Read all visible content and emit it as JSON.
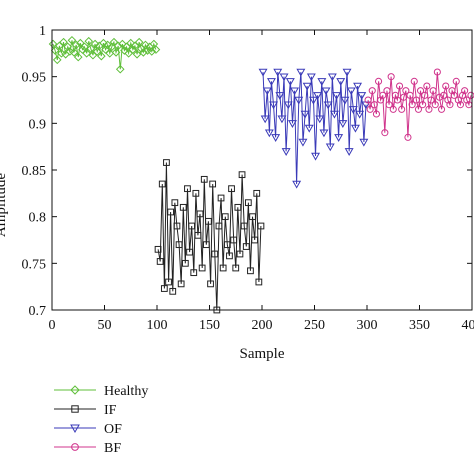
{
  "chart_data": {
    "type": "scatter",
    "xlabel": "Sample",
    "ylabel": "Amplitude",
    "xlim": [
      0,
      400
    ],
    "ylim": [
      0.7,
      1.0
    ],
    "xticks": [
      0,
      50,
      100,
      150,
      200,
      250,
      300,
      350,
      400
    ],
    "yticks": [
      0.7,
      0.75,
      0.8,
      0.85,
      0.9,
      0.95,
      1
    ],
    "grid": false,
    "legend_position": "below-left",
    "series": [
      {
        "name": "Healthy",
        "color": "#5fbf3a",
        "marker": "diamond",
        "x": [
          1,
          3,
          5,
          7,
          9,
          11,
          13,
          15,
          17,
          19,
          21,
          23,
          25,
          27,
          29,
          31,
          33,
          35,
          37,
          39,
          41,
          43,
          45,
          47,
          49,
          51,
          53,
          55,
          57,
          59,
          61,
          63,
          65,
          67,
          69,
          71,
          73,
          75,
          77,
          79,
          81,
          83,
          85,
          87,
          89,
          91,
          93,
          95,
          97,
          99
        ],
        "values": [
          0.985,
          0.978,
          0.968,
          0.983,
          0.975,
          0.987,
          0.974,
          0.982,
          0.977,
          0.989,
          0.976,
          0.984,
          0.971,
          0.986,
          0.979,
          0.982,
          0.975,
          0.988,
          0.98,
          0.973,
          0.985,
          0.977,
          0.983,
          0.972,
          0.986,
          0.979,
          0.984,
          0.975,
          0.982,
          0.987,
          0.976,
          0.983,
          0.958,
          0.985,
          0.978,
          0.982,
          0.975,
          0.986,
          0.979,
          0.983,
          0.974,
          0.987,
          0.98,
          0.976,
          0.984,
          0.978,
          0.982,
          0.977,
          0.985,
          0.979
        ]
      },
      {
        "name": "IF",
        "color": "#222222",
        "marker": "square",
        "x": [
          101,
          103,
          105,
          107,
          109,
          111,
          113,
          115,
          117,
          119,
          121,
          123,
          125,
          127,
          129,
          131,
          133,
          135,
          137,
          139,
          141,
          143,
          145,
          147,
          149,
          151,
          153,
          155,
          157,
          159,
          161,
          163,
          165,
          167,
          169,
          171,
          173,
          175,
          177,
          179,
          181,
          183,
          185,
          187,
          189,
          191,
          193,
          195,
          197,
          199
        ],
        "values": [
          0.765,
          0.752,
          0.835,
          0.723,
          0.858,
          0.73,
          0.805,
          0.72,
          0.815,
          0.79,
          0.77,
          0.728,
          0.81,
          0.75,
          0.83,
          0.762,
          0.79,
          0.74,
          0.825,
          0.78,
          0.803,
          0.745,
          0.84,
          0.77,
          0.795,
          0.728,
          0.835,
          0.76,
          0.7,
          0.79,
          0.82,
          0.745,
          0.8,
          0.77,
          0.758,
          0.83,
          0.775,
          0.745,
          0.81,
          0.76,
          0.845,
          0.79,
          0.768,
          0.815,
          0.742,
          0.8,
          0.775,
          0.825,
          0.73,
          0.79
        ]
      },
      {
        "name": "OF",
        "color": "#3a3ab8",
        "marker": "triangle-down",
        "x": [
          201,
          203,
          205,
          207,
          209,
          211,
          213,
          215,
          217,
          219,
          221,
          223,
          225,
          227,
          229,
          231,
          233,
          235,
          237,
          239,
          241,
          243,
          245,
          247,
          249,
          251,
          253,
          255,
          257,
          259,
          261,
          263,
          265,
          267,
          269,
          271,
          273,
          275,
          277,
          279,
          281,
          283,
          285,
          287,
          289,
          291,
          293,
          295,
          297,
          299
        ],
        "values": [
          0.955,
          0.905,
          0.935,
          0.89,
          0.945,
          0.92,
          0.885,
          0.955,
          0.93,
          0.905,
          0.95,
          0.87,
          0.92,
          0.945,
          0.9,
          0.935,
          0.835,
          0.925,
          0.955,
          0.88,
          0.91,
          0.94,
          0.895,
          0.95,
          0.925,
          0.865,
          0.93,
          0.905,
          0.945,
          0.89,
          0.935,
          0.92,
          0.875,
          0.95,
          0.91,
          0.93,
          0.885,
          0.945,
          0.9,
          0.925,
          0.955,
          0.87,
          0.935,
          0.915,
          0.895,
          0.94,
          0.91,
          0.93,
          0.88,
          0.92
        ]
      },
      {
        "name": "BF",
        "color": "#d0348c",
        "marker": "circle",
        "x": [
          301,
          303,
          305,
          307,
          309,
          311,
          313,
          315,
          317,
          319,
          321,
          323,
          325,
          327,
          329,
          331,
          333,
          335,
          337,
          339,
          341,
          343,
          345,
          347,
          349,
          351,
          353,
          355,
          357,
          359,
          361,
          363,
          365,
          367,
          369,
          371,
          373,
          375,
          377,
          379,
          381,
          383,
          385,
          387,
          389,
          391,
          393,
          395,
          397,
          399
        ],
        "values": [
          0.925,
          0.915,
          0.935,
          0.92,
          0.91,
          0.945,
          0.925,
          0.93,
          0.89,
          0.935,
          0.92,
          0.95,
          0.915,
          0.93,
          0.925,
          0.94,
          0.915,
          0.928,
          0.935,
          0.885,
          0.93,
          0.92,
          0.945,
          0.925,
          0.915,
          0.935,
          0.92,
          0.93,
          0.94,
          0.915,
          0.925,
          0.935,
          0.92,
          0.955,
          0.928,
          0.915,
          0.93,
          0.94,
          0.925,
          0.92,
          0.935,
          0.93,
          0.945,
          0.925,
          0.92,
          0.93,
          0.935,
          0.925,
          0.92,
          0.93
        ]
      }
    ]
  }
}
